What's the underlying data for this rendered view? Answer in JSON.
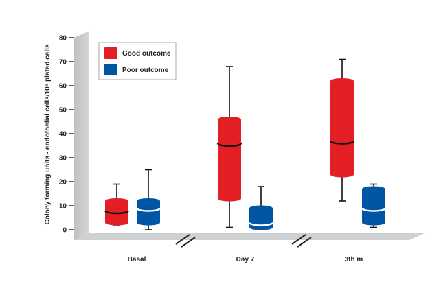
{
  "chart_data": {
    "type": "box",
    "ylabel": "Colony forming units - endothelial cells/10⁶ plated cells",
    "ylim": [
      0,
      80
    ],
    "yticks": [
      0,
      10,
      20,
      30,
      40,
      50,
      60,
      70,
      80
    ],
    "categories": [
      "Basal",
      "Day 7",
      "3th m"
    ],
    "legend": {
      "position": "top-left"
    },
    "series": [
      {
        "name": "Good outcome",
        "color": "#e31e24",
        "boxes": [
          {
            "min": 2,
            "q1": 3,
            "median": 8,
            "q3": 12,
            "max": 19
          },
          {
            "min": 1,
            "q1": 13,
            "median": 36,
            "q3": 46,
            "max": 68
          },
          {
            "min": 12,
            "q1": 23,
            "median": 37,
            "q3": 62,
            "max": 71
          }
        ]
      },
      {
        "name": "Poor outcome",
        "color": "#0055a4",
        "boxes": [
          {
            "min": 0,
            "q1": 3,
            "median": 9,
            "q3": 12,
            "max": 25
          },
          {
            "min": 0,
            "q1": 1,
            "median": 3,
            "q3": 9,
            "max": 18
          },
          {
            "min": 1,
            "q1": 3,
            "median": 9,
            "q3": 17,
            "max": 19
          }
        ]
      }
    ]
  }
}
